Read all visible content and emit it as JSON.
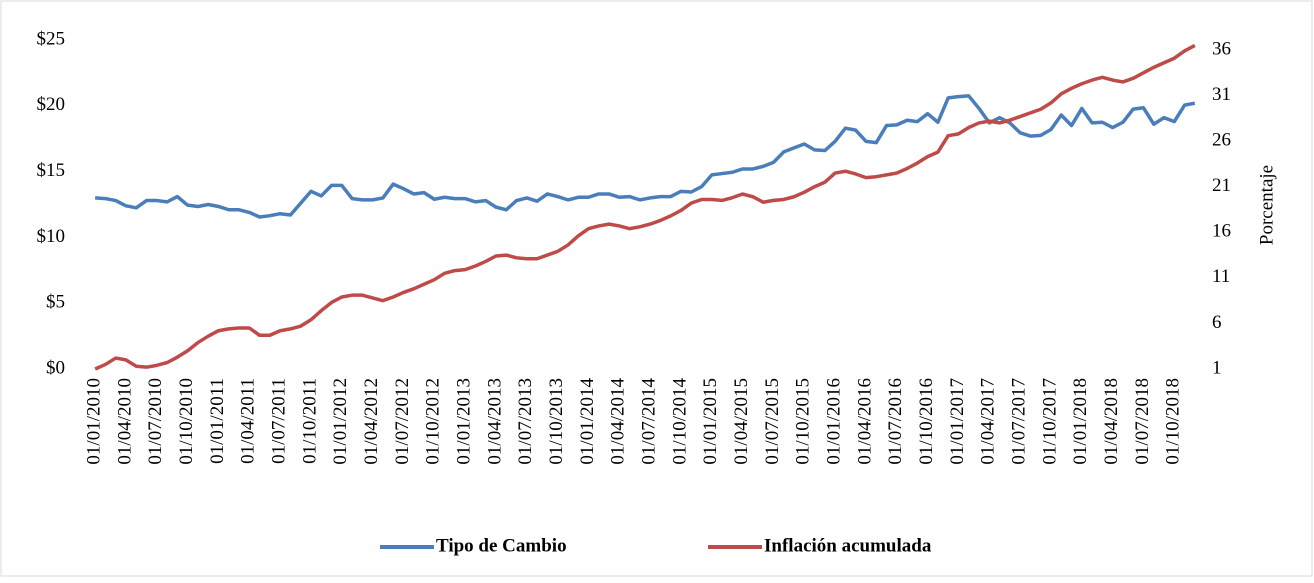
{
  "chart_data": {
    "type": "line",
    "y2label": "Porcentaje",
    "categories": [
      "01/01/2010",
      null,
      null,
      "01/04/2010",
      null,
      null,
      "01/07/2010",
      null,
      null,
      "01/10/2010",
      null,
      null,
      "01/01/2011",
      null,
      null,
      "01/04/2011",
      null,
      null,
      "01/07/2011",
      null,
      null,
      "01/10/2011",
      null,
      null,
      "01/01/2012",
      null,
      null,
      "01/04/2012",
      null,
      null,
      "01/07/2012",
      null,
      null,
      "01/10/2012",
      null,
      null,
      "01/01/2013",
      null,
      null,
      "01/04/2013",
      null,
      null,
      "01/07/2013",
      null,
      null,
      "01/10/2013",
      null,
      null,
      "01/01/2014",
      null,
      null,
      "01/04/2014",
      null,
      null,
      "01/07/2014",
      null,
      null,
      "01/10/2014",
      null,
      null,
      "01/01/2015",
      null,
      null,
      "01/04/2015",
      null,
      null,
      "01/07/2015",
      null,
      null,
      "01/10/2015",
      null,
      null,
      "01/01/2016",
      null,
      null,
      "01/04/2016",
      null,
      null,
      "01/07/2016",
      null,
      null,
      "01/10/2016",
      null,
      null,
      "01/01/2017",
      null,
      null,
      "01/04/2017",
      null,
      null,
      "01/07/2017",
      null,
      null,
      "01/10/2017",
      null,
      null,
      "01/01/2018",
      null,
      null,
      "01/04/2018",
      null,
      null,
      "01/07/2018",
      null,
      null,
      "01/10/2018",
      null,
      null
    ],
    "series": [
      {
        "name": "Tipo de Cambio",
        "color": "#4a7ebb",
        "values": [
          13.0,
          12.95,
          12.8,
          12.4,
          12.25,
          12.8,
          12.8,
          12.7,
          13.1,
          12.45,
          12.35,
          12.5,
          12.35,
          12.1,
          12.1,
          11.9,
          11.55,
          11.65,
          11.8,
          11.7,
          12.6,
          13.5,
          13.15,
          13.95,
          13.95,
          12.95,
          12.85,
          12.85,
          13.0,
          14.05,
          13.7,
          13.3,
          13.4,
          12.9,
          13.05,
          12.95,
          12.95,
          12.7,
          12.8,
          12.3,
          12.1,
          12.8,
          13.0,
          12.75,
          13.3,
          13.1,
          12.85,
          13.05,
          13.05,
          13.3,
          13.3,
          13.05,
          13.1,
          12.85,
          13.0,
          13.1,
          13.1,
          13.5,
          13.45,
          13.85,
          14.75,
          14.85,
          14.95,
          15.2,
          15.2,
          15.4,
          15.7,
          16.5,
          16.8,
          17.1,
          16.65,
          16.6,
          17.3,
          18.3,
          18.15,
          17.3,
          17.2,
          18.5,
          18.55,
          18.9,
          18.8,
          19.4,
          18.75,
          20.6,
          20.7,
          20.75,
          19.8,
          18.7,
          19.1,
          18.7,
          17.95,
          17.7,
          17.75,
          18.2,
          19.3,
          18.5,
          19.8,
          18.7,
          18.75,
          18.35,
          18.75,
          19.75,
          19.85,
          18.6,
          19.1,
          18.8,
          20.05,
          20.2
        ]
      },
      {
        "name": "Inflación acumulada",
        "color": "#be4b48",
        "axis": "y2",
        "values": [
          1.0,
          1.5,
          2.2,
          2.0,
          1.3,
          1.2,
          1.4,
          1.7,
          2.3,
          3.0,
          3.9,
          4.6,
          5.2,
          5.4,
          5.5,
          5.5,
          4.7,
          4.7,
          5.2,
          5.4,
          5.7,
          6.4,
          7.4,
          8.3,
          8.9,
          9.1,
          9.1,
          8.8,
          8.5,
          8.9,
          9.4,
          9.8,
          10.3,
          10.8,
          11.5,
          11.8,
          11.9,
          12.3,
          12.8,
          13.4,
          13.5,
          13.2,
          13.1,
          13.1,
          13.5,
          13.9,
          14.6,
          15.6,
          16.4,
          16.7,
          16.9,
          16.7,
          16.4,
          16.6,
          16.9,
          17.3,
          17.8,
          18.4,
          19.2,
          19.6,
          19.6,
          19.5,
          19.8,
          20.2,
          19.9,
          19.3,
          19.5,
          19.6,
          19.9,
          20.4,
          21.0,
          21.5,
          22.5,
          22.7,
          22.4,
          22.0,
          22.1,
          22.3,
          22.5,
          23.0,
          23.6,
          24.3,
          24.8,
          26.6,
          26.8,
          27.5,
          28.0,
          28.2,
          28.0,
          28.3,
          28.7,
          29.1,
          29.5,
          30.2,
          31.2,
          31.8,
          32.3,
          32.7,
          33.0,
          32.7,
          32.5,
          32.9,
          33.5,
          34.1,
          34.6,
          35.1,
          35.9,
          36.5
        ]
      }
    ],
    "ylim": [
      0,
      25
    ],
    "yticks": [
      {
        "value": 0,
        "label": "$0"
      },
      {
        "value": 5,
        "label": "$5"
      },
      {
        "value": 10,
        "label": "$10"
      },
      {
        "value": 15,
        "label": "$15"
      },
      {
        "value": 20,
        "label": "$20"
      },
      {
        "value": 25,
        "label": "$25"
      }
    ],
    "y2lim": [
      1,
      37.1
    ],
    "y2ticks": [
      1,
      6,
      11,
      16,
      21,
      26,
      31,
      36
    ],
    "legend": "bottom"
  }
}
